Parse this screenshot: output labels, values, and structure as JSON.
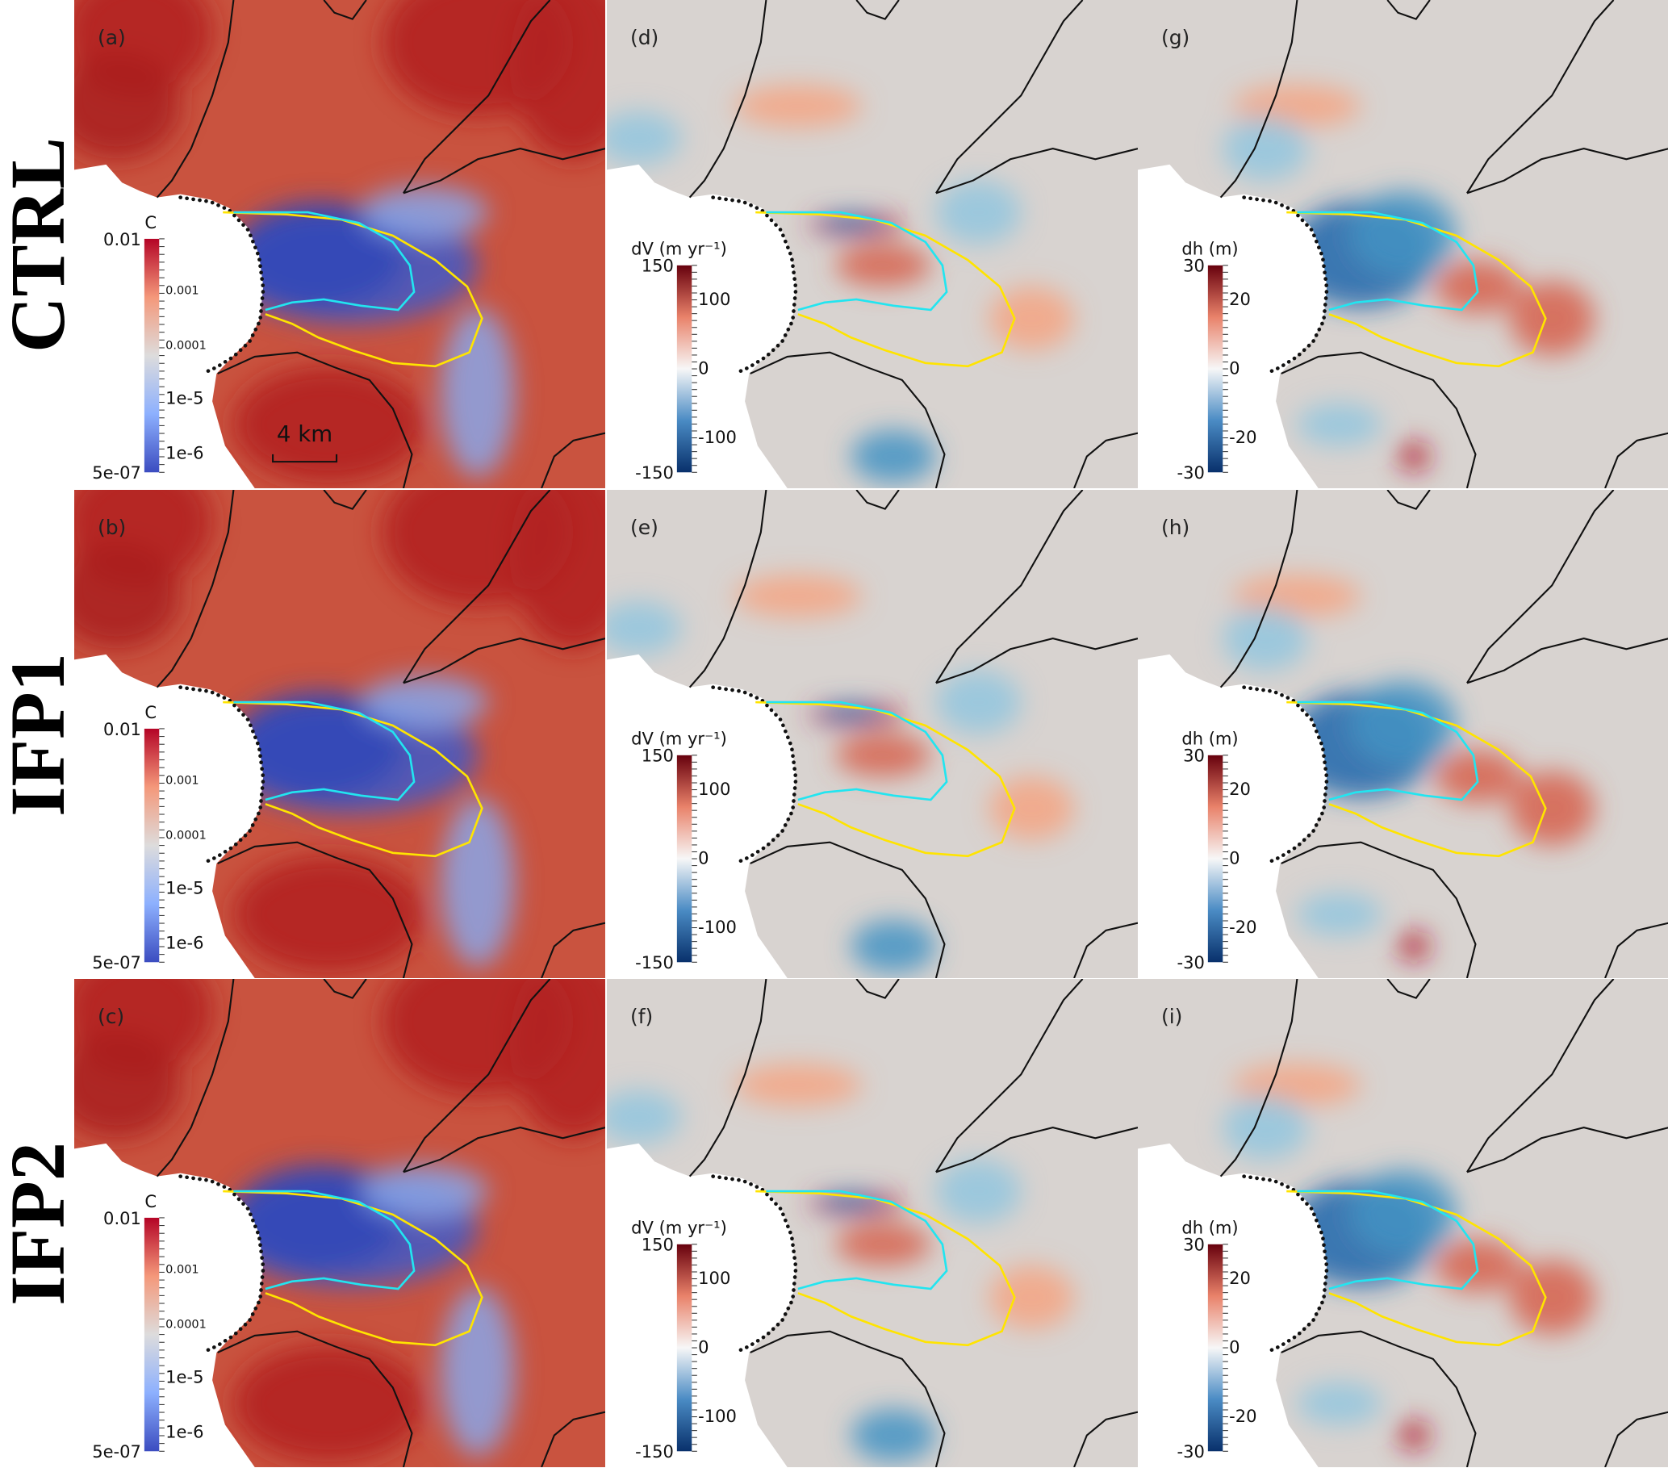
{
  "figure": {
    "rows": [
      {
        "label": "CTRL",
        "panels": [
          "(a)",
          "(d)",
          "(g)"
        ]
      },
      {
        "label": "IFP1",
        "panels": [
          "(b)",
          "(e)",
          "(h)"
        ]
      },
      {
        "label": "IFP2",
        "panels": [
          "(c)",
          "(f)",
          "(i)"
        ]
      }
    ],
    "columns": [
      {
        "field": "C",
        "colorbar": {
          "title": "C",
          "min_label": "5e-07",
          "max_label": "0.01",
          "tick_labels": [
            "0.001",
            "0.0001",
            "1e-5",
            "1e-6"
          ],
          "scale": "log",
          "colors": [
            "#3b4cc0",
            "#8db0fe",
            "#dddcdc",
            "#f4987a",
            "#b40426"
          ]
        },
        "background": "#c9533f"
      },
      {
        "field": "dV",
        "colorbar": {
          "title": "dV (m yr⁻¹)",
          "min_label": "-150",
          "max_label": "150",
          "tick_labels": [
            "100",
            "0",
            "-100"
          ],
          "scale": "linear",
          "colors": [
            "#08306b",
            "#4a8bc4",
            "#f7f7f7",
            "#e9826a",
            "#67000d"
          ]
        },
        "background": "#d8d3d0"
      },
      {
        "field": "dh",
        "colorbar": {
          "title": "dh (m)",
          "min_label": "-30",
          "max_label": "30",
          "tick_labels": [
            "20",
            "0",
            "-20"
          ],
          "scale": "linear",
          "colors": [
            "#08306b",
            "#4a8bc4",
            "#f7f7f7",
            "#e9826a",
            "#67000d"
          ]
        },
        "background": "#d8d3d0"
      }
    ],
    "scale_bar": "4 km",
    "outline_colors": {
      "outer": "#ffe400",
      "inner": "#22e5f0",
      "contours": "#111111",
      "front": "#111111"
    }
  }
}
